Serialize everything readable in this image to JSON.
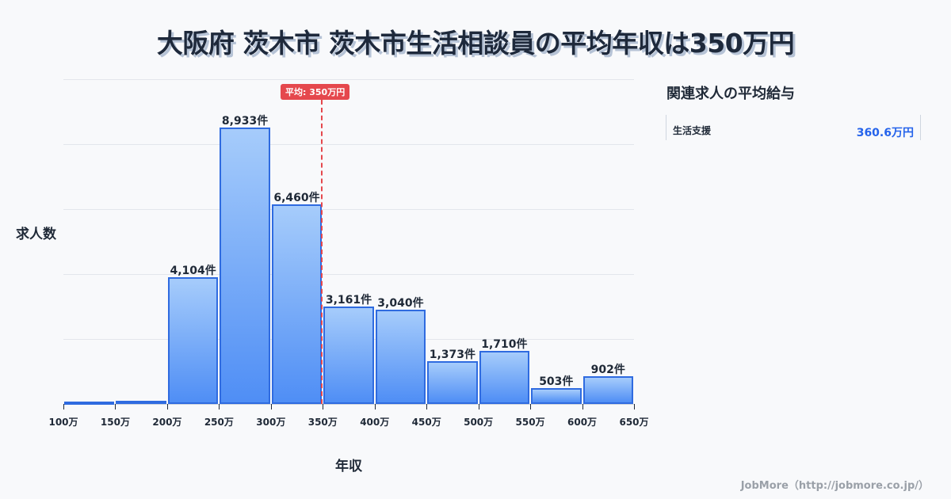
{
  "title": "大阪府 茨木市 茨木市生活相談員の平均年収は350万円",
  "average_badge": "平均: 350万円",
  "y_axis_label": "求人数",
  "x_axis_label": "年収",
  "sidebar": {
    "title": "関連求人の平均給与",
    "items": [
      {
        "name": "生活支援",
        "value": "360.6万円"
      }
    ]
  },
  "footer": "JobMore（http://jobmore.co.jp/）",
  "colors": {
    "bar_stroke": "#2f6be0",
    "bar_top": "#a6ccfb",
    "bar_bottom": "#4f8ef5",
    "average": "#e5484d",
    "value_accent": "#2563eb"
  },
  "chart_data": {
    "type": "bar",
    "title": "大阪府 茨木市 茨木市生活相談員の平均年収は350万円",
    "xlabel": "年収",
    "ylabel": "求人数",
    "categories": [
      "100-150万",
      "150-200万",
      "200-250万",
      "250-300万",
      "300-350万",
      "350-400万",
      "400-450万",
      "450-500万",
      "500-550万",
      "550-600万",
      "600-650万"
    ],
    "values": [
      50,
      100,
      4104,
      8933,
      6460,
      3161,
      3040,
      1373,
      1710,
      503,
      902
    ],
    "value_labels": [
      "",
      "",
      "4,104件",
      "8,933件",
      "6,460件",
      "3,161件",
      "3,040件",
      "1,373件",
      "1,710件",
      "503件",
      "902件"
    ],
    "x_tick_labels": [
      "100万",
      "150万",
      "200万",
      "250万",
      "300万",
      "350万",
      "400万",
      "450万",
      "500万",
      "550万",
      "600万",
      "650万"
    ],
    "average_line": {
      "value": 350,
      "label": "平均: 350万円"
    },
    "grid": true,
    "legend": "none"
  }
}
